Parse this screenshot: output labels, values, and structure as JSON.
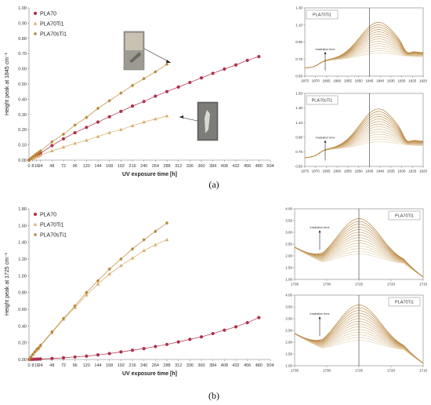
{
  "colors": {
    "PLA70": "#b0304a",
    "PLA70Ti1": "#d8ac68",
    "PLA70sTi1": "#b88a3e",
    "spectrum_light": "#ead8bb",
    "spectrum_dark": "#b8853f"
  },
  "panel_labels": {
    "a": "(a)",
    "b": "(b)"
  },
  "chart_data": [
    {
      "id": "a_main",
      "type": "line",
      "xlabel": "UV exposure time [h]",
      "ylabel": "Height peak at 1845 cm⁻¹",
      "xlim": [
        0,
        504
      ],
      "ylim": [
        0,
        1.0
      ],
      "xticks": [
        0,
        8,
        16,
        24,
        48,
        72,
        96,
        120,
        144,
        168,
        192,
        216,
        240,
        264,
        288,
        312,
        336,
        360,
        384,
        408,
        432,
        456,
        480,
        504
      ],
      "yticks": [
        0.0,
        0.1,
        0.2,
        0.3,
        0.4,
        0.5,
        0.6,
        0.7,
        0.8,
        0.9,
        1.0
      ],
      "y_decimals": 2,
      "legend": "top-left",
      "series": [
        {
          "name": "PLA70",
          "marker": "circle",
          "x": [
            0,
            4,
            8,
            12,
            16,
            20,
            24,
            48,
            72,
            96,
            120,
            144,
            168,
            192,
            216,
            240,
            264,
            288,
            312,
            336,
            360,
            384,
            408,
            432,
            456,
            480
          ],
          "y": [
            0,
            0.008,
            0.015,
            0.022,
            0.029,
            0.037,
            0.045,
            0.095,
            0.14,
            0.18,
            0.215,
            0.25,
            0.285,
            0.32,
            0.355,
            0.385,
            0.42,
            0.45,
            0.48,
            0.51,
            0.54,
            0.57,
            0.598,
            0.625,
            0.655,
            0.68
          ]
        },
        {
          "name": "PLA70Ti1",
          "marker": "triangle",
          "x": [
            0,
            4,
            8,
            12,
            16,
            20,
            24,
            48,
            72,
            96,
            120,
            144,
            168,
            192,
            216,
            240,
            264,
            288
          ],
          "y": [
            0,
            0.006,
            0.012,
            0.017,
            0.022,
            0.027,
            0.033,
            0.06,
            0.085,
            0.11,
            0.13,
            0.155,
            0.18,
            0.2,
            0.225,
            0.25,
            0.27,
            0.29
          ]
        },
        {
          "name": "PLA70sTi1",
          "marker": "diamond",
          "x": [
            0,
            4,
            8,
            12,
            16,
            20,
            24,
            48,
            72,
            96,
            120,
            144,
            168,
            192,
            216,
            240,
            264,
            288
          ],
          "y": [
            0,
            0.012,
            0.022,
            0.032,
            0.042,
            0.05,
            0.06,
            0.12,
            0.17,
            0.23,
            0.28,
            0.34,
            0.39,
            0.44,
            0.49,
            0.535,
            0.58,
            0.63
          ]
        }
      ]
    },
    {
      "id": "a_inset1",
      "type": "line",
      "title": "PLA70Ti1",
      "annotation": "Irradiation time",
      "xlim": [
        1875,
        1820
      ],
      "ylim": [
        0.5,
        1.3
      ],
      "xticks": [
        1875,
        1870,
        1865,
        1860,
        1855,
        1850,
        1845,
        1840,
        1835,
        1830,
        1825,
        1820
      ],
      "yticks": [
        0.5,
        0.7,
        0.9,
        1.1,
        1.3
      ],
      "y_decimals": 2,
      "vline": 1845
    },
    {
      "id": "a_inset2",
      "type": "line",
      "title": "PLA70sTi1",
      "annotation": "Irradiation time",
      "xlim": [
        1875,
        1820
      ],
      "ylim": [
        0.5,
        1.5
      ],
      "xticks": [
        1875,
        1870,
        1865,
        1860,
        1855,
        1850,
        1845,
        1840,
        1835,
        1830,
        1825,
        1820
      ],
      "yticks": [
        0.5,
        0.7,
        0.9,
        1.1,
        1.3,
        1.5
      ],
      "y_decimals": 2,
      "vline": 1845
    },
    {
      "id": "b_main",
      "type": "line",
      "xlabel": "UV exposure time [h]",
      "ylabel": "Height peak at 1725 cm⁻¹",
      "xlim": [
        0,
        504
      ],
      "ylim": [
        0,
        1.8
      ],
      "xticks": [
        0,
        8,
        16,
        24,
        48,
        72,
        96,
        120,
        144,
        168,
        192,
        216,
        240,
        264,
        288,
        312,
        336,
        360,
        384,
        408,
        432,
        456,
        480,
        504
      ],
      "yticks": [
        0.0,
        0.2,
        0.4,
        0.6,
        0.8,
        1.0,
        1.2,
        1.4,
        1.6,
        1.8
      ],
      "y_decimals": 2,
      "legend": "top-left",
      "series": [
        {
          "name": "PLA70",
          "marker": "circle",
          "x": [
            0,
            4,
            8,
            12,
            16,
            20,
            24,
            48,
            72,
            96,
            120,
            144,
            168,
            192,
            216,
            240,
            264,
            288,
            312,
            336,
            360,
            384,
            408,
            432,
            456,
            480
          ],
          "y": [
            0,
            0.001,
            0.002,
            0.003,
            0.004,
            0.005,
            0.006,
            0.012,
            0.02,
            0.03,
            0.04,
            0.055,
            0.07,
            0.09,
            0.11,
            0.13,
            0.155,
            0.18,
            0.21,
            0.24,
            0.27,
            0.31,
            0.35,
            0.39,
            0.44,
            0.5
          ]
        },
        {
          "name": "PLA70Ti1",
          "marker": "triangle",
          "x": [
            0,
            4,
            8,
            12,
            16,
            20,
            24,
            48,
            72,
            96,
            120,
            144,
            168,
            192,
            216,
            240,
            264,
            288
          ],
          "y": [
            0,
            0.03,
            0.06,
            0.09,
            0.11,
            0.13,
            0.16,
            0.32,
            0.48,
            0.62,
            0.77,
            0.9,
            1.02,
            1.12,
            1.21,
            1.3,
            1.37,
            1.43
          ]
        },
        {
          "name": "PLA70sTi1",
          "marker": "diamond",
          "x": [
            0,
            4,
            8,
            12,
            16,
            20,
            24,
            48,
            72,
            96,
            120,
            144,
            168,
            192,
            216,
            240,
            264,
            288
          ],
          "y": [
            0,
            0.03,
            0.06,
            0.09,
            0.12,
            0.14,
            0.17,
            0.33,
            0.49,
            0.64,
            0.8,
            0.94,
            1.08,
            1.2,
            1.32,
            1.43,
            1.53,
            1.63
          ]
        }
      ]
    },
    {
      "id": "b_inset1",
      "type": "line",
      "title": "PLA70Ti1",
      "annotation": "Irradiation time",
      "xlim": [
        1735,
        1715
      ],
      "ylim": [
        1.0,
        4.0
      ],
      "xticks": [
        1735,
        1730,
        1725,
        1720,
        1715
      ],
      "yticks": [
        1.0,
        1.5,
        2.0,
        2.5,
        3.0,
        3.5,
        4.0
      ],
      "y_decimals": 2,
      "vline": 1725
    },
    {
      "id": "b_inset2",
      "type": "line",
      "title": "PLA70Ti1",
      "annotation": "Irradiation time",
      "xlim": [
        1735,
        1715
      ],
      "ylim": [
        1.0,
        4.0
      ],
      "xticks": [
        1735,
        1730,
        1725,
        1720,
        1715
      ],
      "yticks": [
        1.0,
        1.5,
        2.0,
        2.5,
        3.0,
        3.5,
        4.0
      ],
      "y_decimals": 2,
      "vline": 1725
    }
  ]
}
